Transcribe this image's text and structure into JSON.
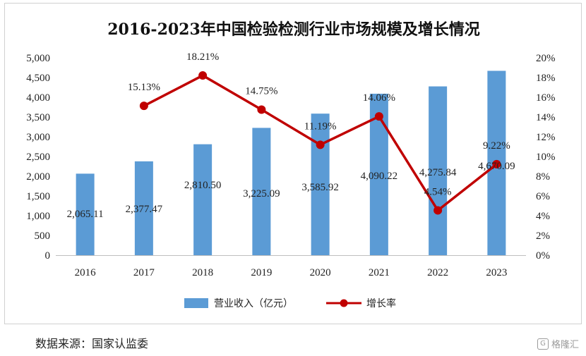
{
  "chart_data": {
    "type": "bar",
    "title": "2016-2023年中国检验检测行业市场规模及增长情况",
    "categories": [
      "2016",
      "2017",
      "2018",
      "2019",
      "2020",
      "2021",
      "2022",
      "2023"
    ],
    "series": [
      {
        "name": "营业收入（亿元）",
        "type": "bar",
        "axis": "left",
        "values": [
          2065.11,
          2377.47,
          2810.5,
          3225.09,
          3585.92,
          4090.22,
          4275.84,
          4670.09
        ],
        "labels": [
          "2,065.11",
          "2,377.47",
          "2,810.50",
          "3,225.09",
          "3,585.92",
          "4,090.22",
          "4,275.84",
          "4,670.09"
        ],
        "color": "#5B9BD5"
      },
      {
        "name": "增长率",
        "type": "line",
        "axis": "right",
        "values": [
          null,
          15.13,
          18.21,
          14.75,
          11.19,
          14.06,
          4.54,
          9.22
        ],
        "labels": [
          "",
          "15.13%",
          "18.21%",
          "14.75%",
          "11.19%",
          "14.06%",
          "4.54%",
          "9.22%"
        ],
        "color": "#C00000"
      }
    ],
    "y_left": {
      "lim": [
        0,
        5000
      ],
      "ticks": [
        "0",
        "500",
        "1,000",
        "1,500",
        "2,000",
        "2,500",
        "3,000",
        "3,500",
        "4,000",
        "4,500",
        "5,000"
      ]
    },
    "y_right": {
      "lim": [
        0,
        20
      ],
      "ticks": [
        "0%",
        "2%",
        "4%",
        "6%",
        "8%",
        "10%",
        "12%",
        "14%",
        "16%",
        "18%",
        "20%"
      ]
    },
    "grid": false,
    "legend": "bottom"
  },
  "source_note": "数据来源：国家认监委",
  "watermark": "格隆汇"
}
